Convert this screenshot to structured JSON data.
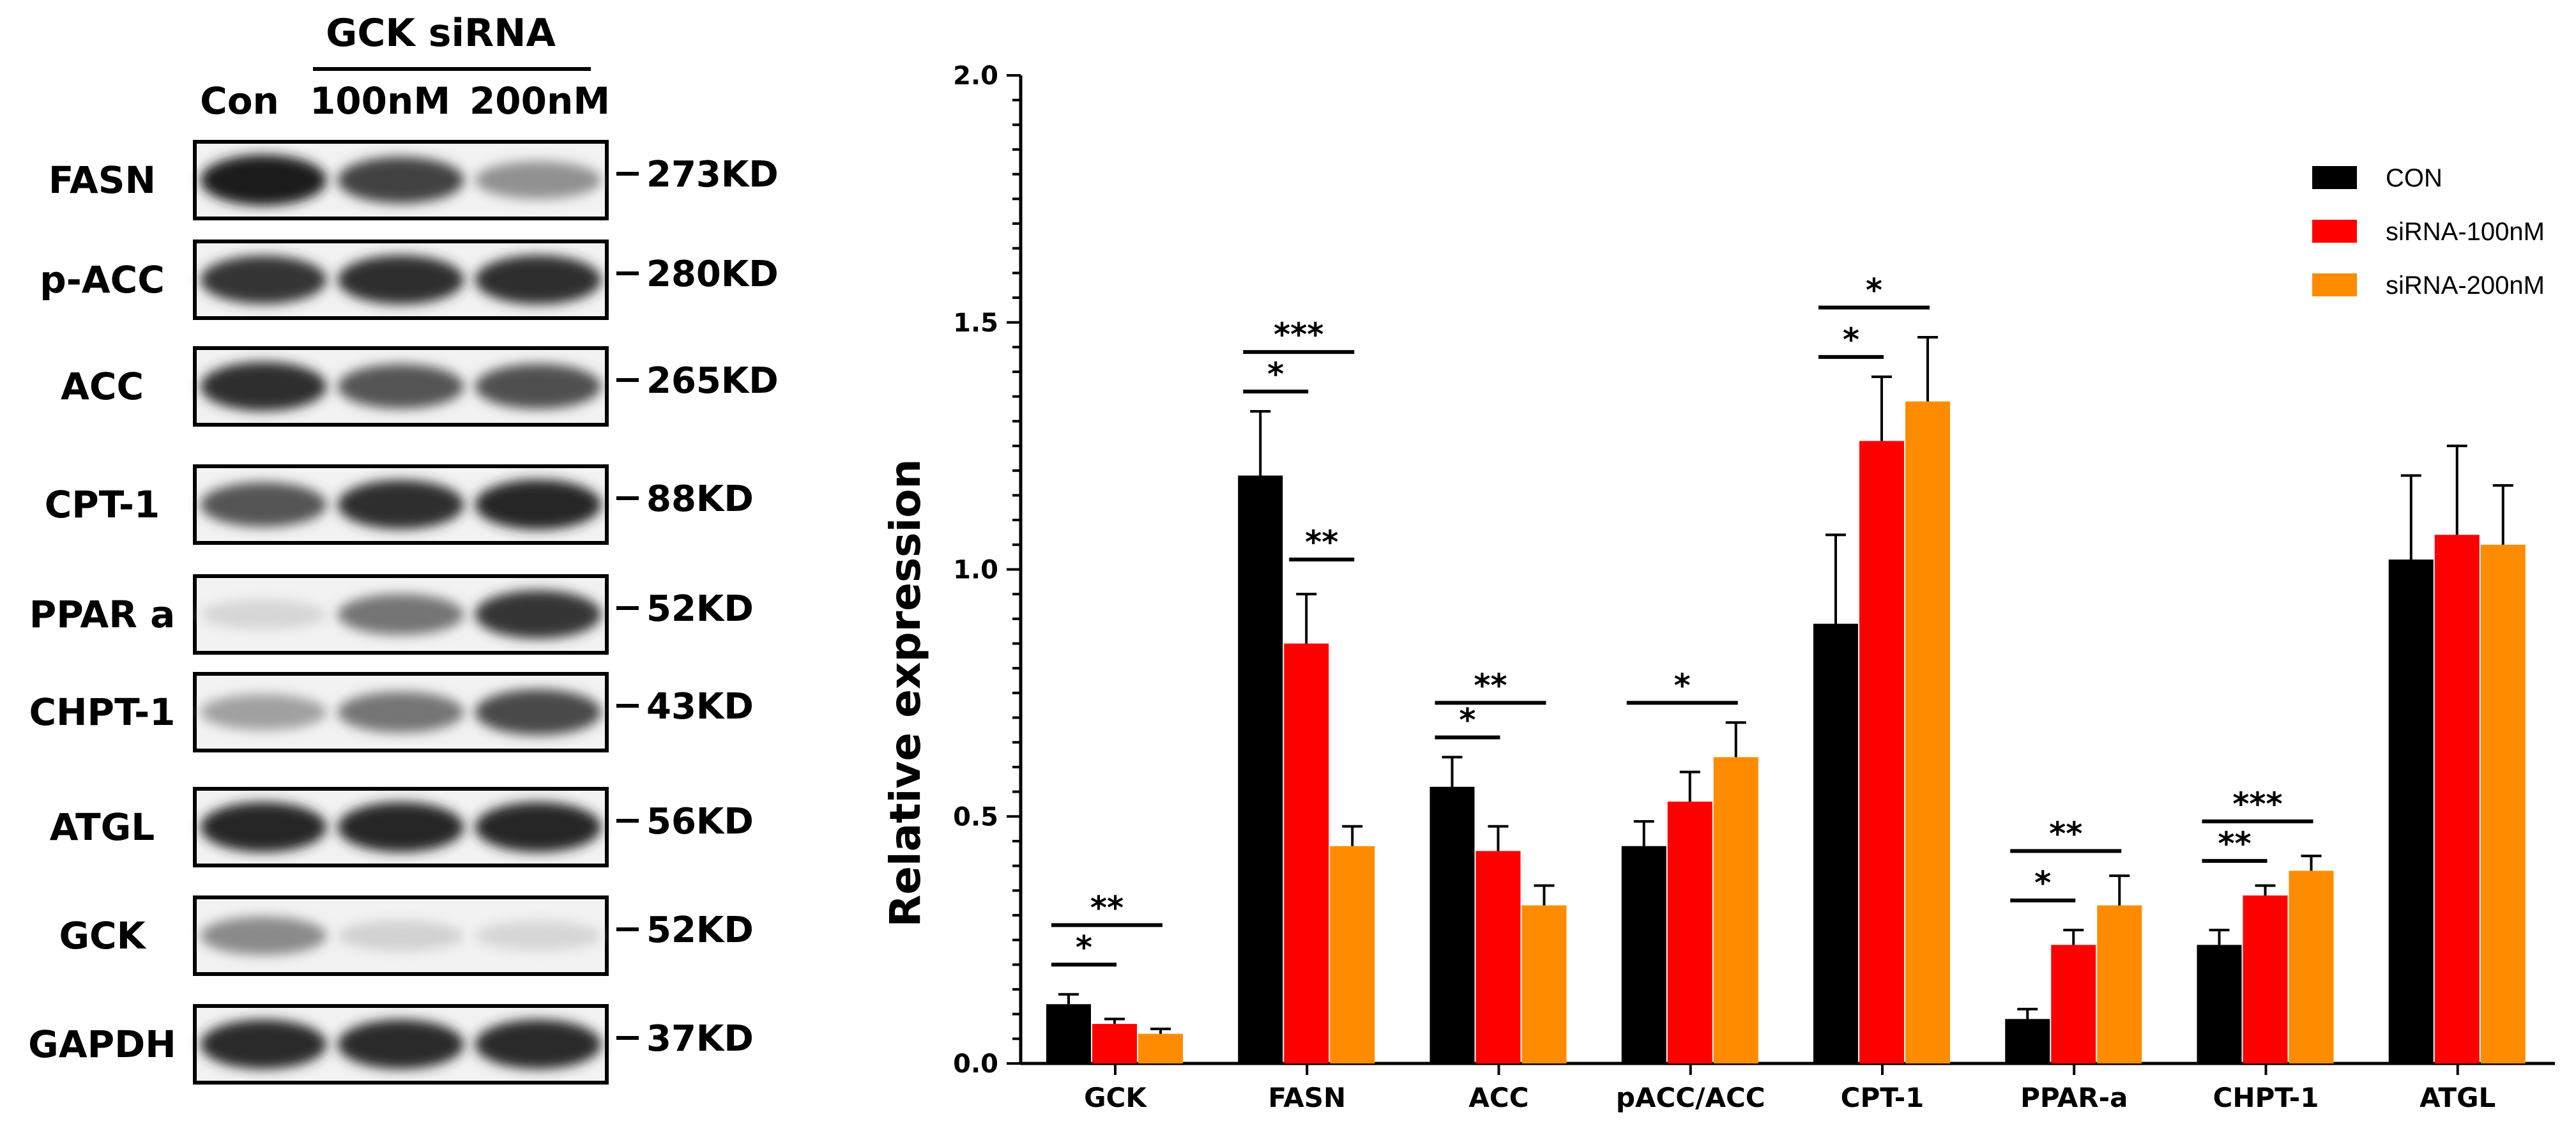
{
  "blot": {
    "group_label": "GCK siRNA",
    "columns": [
      "Con",
      "100nM",
      "200nM"
    ],
    "rows": [
      {
        "protein": "FASN",
        "size": "273KD",
        "intensities": [
          0.95,
          0.78,
          0.42
        ]
      },
      {
        "protein": "p-ACC",
        "size": "280KD",
        "intensities": [
          0.85,
          0.88,
          0.88
        ]
      },
      {
        "protein": "ACC",
        "size": "265KD",
        "intensities": [
          0.88,
          0.7,
          0.72
        ]
      },
      {
        "protein": "CPT-1",
        "size": "88KD",
        "intensities": [
          0.7,
          0.88,
          0.92
        ]
      },
      {
        "protein": "PPAR a",
        "size": "52KD",
        "intensities": [
          0.1,
          0.55,
          0.85
        ]
      },
      {
        "protein": "CHPT-1",
        "size": "43KD",
        "intensities": [
          0.35,
          0.55,
          0.75
        ]
      },
      {
        "protein": "ATGL",
        "size": "56KD",
        "intensities": [
          0.92,
          0.92,
          0.92
        ]
      },
      {
        "protein": "GCK",
        "size": "52KD",
        "intensities": [
          0.45,
          0.12,
          0.1
        ]
      },
      {
        "protein": "GAPDH",
        "size": "37KD",
        "intensities": [
          0.9,
          0.9,
          0.9
        ]
      }
    ]
  },
  "chart_data": {
    "type": "bar",
    "title": "",
    "xlabel": "",
    "ylabel": "Relative expression",
    "ylim": [
      0,
      2.0
    ],
    "yticks": [
      "0.0",
      "0.5",
      "1.0",
      "1.5",
      "2.0"
    ],
    "categories": [
      "GCK",
      "FASN",
      "ACC",
      "pACC/ACC",
      "CPT-1",
      "PPAR-a",
      "CHPT-1",
      "ATGL"
    ],
    "series": [
      {
        "name": "CON",
        "color": "#000000",
        "values": [
          0.12,
          1.19,
          0.56,
          0.44,
          0.89,
          0.09,
          0.24,
          1.02
        ],
        "errors": [
          0.02,
          0.13,
          0.06,
          0.05,
          0.18,
          0.02,
          0.03,
          0.17
        ]
      },
      {
        "name": "siRNA-100nM",
        "color": "#ff0000",
        "values": [
          0.08,
          0.85,
          0.43,
          0.53,
          1.26,
          0.24,
          0.34,
          1.07
        ],
        "errors": [
          0.01,
          0.1,
          0.05,
          0.06,
          0.13,
          0.03,
          0.02,
          0.18
        ]
      },
      {
        "name": "siRNA-200nM",
        "color": "#ff8c00",
        "values": [
          0.06,
          0.44,
          0.32,
          0.62,
          1.34,
          0.32,
          0.39,
          1.05
        ],
        "errors": [
          0.01,
          0.04,
          0.04,
          0.07,
          0.13,
          0.06,
          0.03,
          0.12
        ]
      }
    ],
    "significance": [
      {
        "category": 0,
        "from": 0,
        "to": 1,
        "label": "*",
        "y": 0.2
      },
      {
        "category": 0,
        "from": 0,
        "to": 2,
        "label": "**",
        "y": 0.28
      },
      {
        "category": 1,
        "from": 0,
        "to": 1,
        "label": "*",
        "y": 1.36
      },
      {
        "category": 1,
        "from": 0,
        "to": 2,
        "label": "***",
        "y": 1.44
      },
      {
        "category": 1,
        "from": 1,
        "to": 2,
        "label": "**",
        "y": 1.02
      },
      {
        "category": 2,
        "from": 0,
        "to": 1,
        "label": "*",
        "y": 0.66
      },
      {
        "category": 2,
        "from": 0,
        "to": 2,
        "label": "**",
        "y": 0.73
      },
      {
        "category": 3,
        "from": 0,
        "to": 2,
        "label": "*",
        "y": 0.73
      },
      {
        "category": 4,
        "from": 0,
        "to": 1,
        "label": "*",
        "y": 1.43
      },
      {
        "category": 4,
        "from": 0,
        "to": 2,
        "label": "*",
        "y": 1.53
      },
      {
        "category": 5,
        "from": 0,
        "to": 1,
        "label": "*",
        "y": 0.33
      },
      {
        "category": 5,
        "from": 0,
        "to": 2,
        "label": "**",
        "y": 0.43
      },
      {
        "category": 6,
        "from": 0,
        "to": 1,
        "label": "**",
        "y": 0.41
      },
      {
        "category": 6,
        "from": 0,
        "to": 2,
        "label": "***",
        "y": 0.49
      }
    ],
    "legend_position": "top-right"
  }
}
